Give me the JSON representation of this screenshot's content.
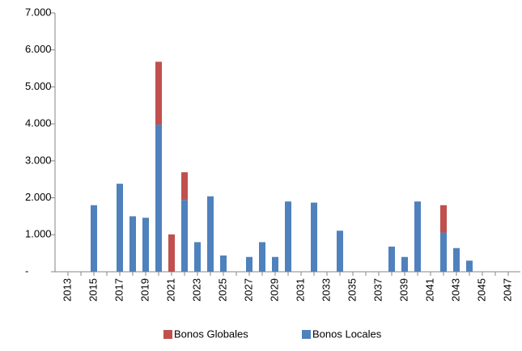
{
  "chart_data": {
    "type": "stacked-bar",
    "categories": [
      "2013",
      null,
      "2015",
      null,
      "2017",
      null,
      "2019",
      null,
      "2021",
      null,
      "2023",
      null,
      "2025",
      null,
      "2027",
      null,
      "2029",
      null,
      "2031",
      null,
      "2033",
      null,
      "2035",
      null,
      "2037",
      null,
      "2039",
      null,
      "2041",
      null,
      "2043",
      null,
      "2045",
      null,
      "2047"
    ],
    "series": [
      {
        "name": "Bonos Globales",
        "color": "#c0504d",
        "values": [
          0,
          0,
          0,
          0,
          0,
          0,
          0,
          1700,
          1010,
          750,
          0,
          0,
          0,
          0,
          0,
          0,
          0,
          0,
          0,
          0,
          0,
          0,
          0,
          0,
          0,
          0,
          0,
          0,
          0,
          740,
          0,
          0,
          0,
          0,
          0
        ]
      },
      {
        "name": "Bonos Locales",
        "color": "#4f81bd",
        "values": [
          0,
          0,
          1800,
          0,
          2380,
          1500,
          1460,
          3980,
          0,
          1940,
          800,
          2040,
          440,
          0,
          400,
          800,
          400,
          1900,
          0,
          1870,
          0,
          1110,
          0,
          0,
          0,
          680,
          400,
          1900,
          0,
          1060,
          640,
          300,
          0,
          0,
          0
        ]
      }
    ],
    "ylim": [
      0,
      7000
    ],
    "yticks": [
      {
        "value": 0,
        "label": "-"
      },
      {
        "value": 1000,
        "label": "1.000"
      },
      {
        "value": 2000,
        "label": "2.000"
      },
      {
        "value": 3000,
        "label": "3.000"
      },
      {
        "value": 4000,
        "label": "4.000"
      },
      {
        "value": 5000,
        "label": "5.000"
      },
      {
        "value": 6000,
        "label": "6.000"
      },
      {
        "value": 7000,
        "label": "7.000"
      }
    ],
    "legend": "bottom"
  }
}
